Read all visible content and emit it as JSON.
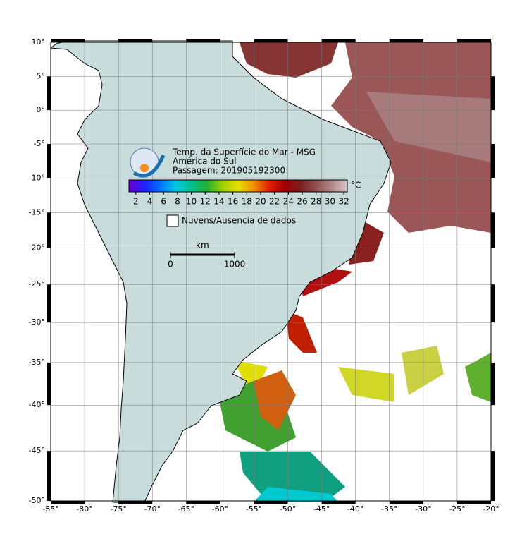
{
  "map": {
    "title": "Temp. da Superfície do Mar - MSG",
    "region": "América do Sul",
    "pass": "Passagem: 201905192300",
    "xlim": [
      -85,
      -20
    ],
    "ylim": [
      -50,
      10
    ],
    "xticks": [
      {
        "value": -85,
        "label": "-85°"
      },
      {
        "value": -80,
        "label": "-80°"
      },
      {
        "value": -75,
        "label": "-75°"
      },
      {
        "value": -70,
        "label": "-70°"
      },
      {
        "value": -65,
        "label": "-65°"
      },
      {
        "value": -60,
        "label": "-60°"
      },
      {
        "value": -55,
        "label": "-55°"
      },
      {
        "value": -50,
        "label": "-50°"
      },
      {
        "value": -45,
        "label": "-45°"
      },
      {
        "value": -40,
        "label": "-40°"
      },
      {
        "value": -35,
        "label": "-35°"
      },
      {
        "value": -30,
        "label": "-30°"
      },
      {
        "value": -25,
        "label": "-25°"
      },
      {
        "value": -20,
        "label": "-20°"
      }
    ],
    "yticks": [
      {
        "value": 10,
        "label": "10°"
      },
      {
        "value": 5,
        "label": "5°"
      },
      {
        "value": 0,
        "label": "0°"
      },
      {
        "value": -5,
        "label": "-5°"
      },
      {
        "value": -10,
        "label": "-10°"
      },
      {
        "value": -15,
        "label": "-15°"
      },
      {
        "value": -20,
        "label": "-20°"
      },
      {
        "value": -25,
        "label": "-25°"
      },
      {
        "value": -30,
        "label": "-30°"
      },
      {
        "value": -35,
        "label": "-35°"
      },
      {
        "value": -40,
        "label": "-40°"
      },
      {
        "value": -45,
        "label": "-45°"
      },
      {
        "value": -50,
        "label": "-50°"
      }
    ],
    "colorbar": {
      "lim": [
        1,
        32.5
      ],
      "ticks": [
        2,
        4,
        6,
        8,
        10,
        12,
        14,
        16,
        18,
        20,
        22,
        24,
        26,
        28,
        30,
        32
      ],
      "unit": "°C",
      "colors": [
        "#7000d0",
        "#2020ff",
        "#0070ff",
        "#00c8e0",
        "#00c090",
        "#20b030",
        "#a0d000",
        "#e8e000",
        "#f09000",
        "#e02000",
        "#a00000",
        "#7a2020",
        "#905050",
        "#b08888",
        "#d8c8c8"
      ]
    },
    "legend": "Nuvens/Ausencia de dados",
    "scale": {
      "unit": "km",
      "ticks": [
        0,
        1000
      ]
    }
  }
}
